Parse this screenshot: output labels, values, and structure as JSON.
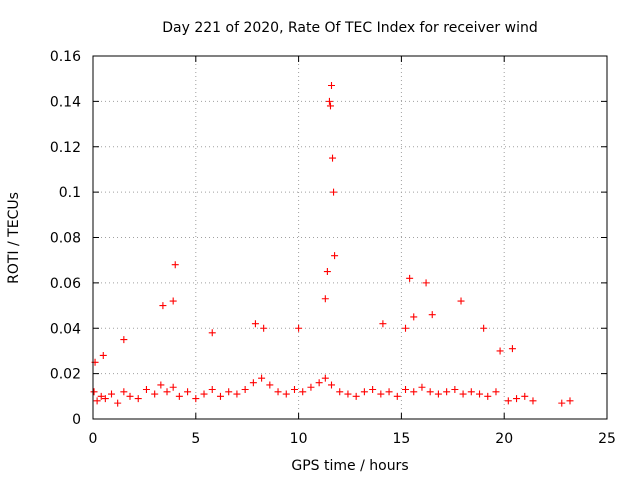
{
  "chart_data": {
    "type": "scatter",
    "title": "Day 221 of 2020, Rate Of TEC Index for receiver wind",
    "xlabel": "GPS time / hours",
    "ylabel": "ROTI / TECUs",
    "xlim": [
      0,
      25
    ],
    "ylim": [
      0,
      0.16
    ],
    "x_ticks": [
      "0",
      "5",
      "10",
      "15",
      "20",
      "25"
    ],
    "y_ticks": [
      "0",
      "0.02",
      "0.04",
      "0.06",
      "0.08",
      "0.1",
      "0.12",
      "0.14",
      "0.16"
    ],
    "grid": true,
    "marker": "+",
    "color": "#ff0000",
    "series": [
      {
        "x": [
          0.05,
          0.2,
          0.4,
          0.6,
          0.9,
          1.2,
          1.5,
          1.8,
          2.2,
          2.6,
          3.0,
          3.3,
          3.6,
          3.9,
          4.2,
          4.6,
          5.0,
          5.4,
          5.8,
          6.2,
          6.6,
          7.0,
          7.4,
          7.8,
          8.2,
          8.6,
          9.0,
          9.4,
          9.8,
          10.2,
          10.6,
          11.0,
          11.3,
          11.6,
          12.0,
          12.4,
          12.8,
          13.2,
          13.6,
          14.0,
          14.4,
          14.8,
          15.2,
          15.6,
          16.0,
          16.4,
          16.8,
          17.2,
          17.6,
          18.0,
          18.4,
          18.8,
          19.2,
          19.6,
          20.2,
          20.6,
          21.0,
          21.4,
          22.8,
          23.2,
          0.1,
          0.5,
          1.5,
          3.4,
          3.9,
          4.0,
          5.8,
          7.9,
          8.3,
          10.0,
          11.3,
          11.4,
          11.5,
          11.55,
          11.6,
          11.65,
          11.7,
          11.75,
          14.1,
          15.2,
          15.4,
          15.6,
          16.2,
          16.5,
          17.9,
          19.0,
          19.8,
          20.4
        ],
        "y": [
          0.012,
          0.008,
          0.01,
          0.009,
          0.011,
          0.007,
          0.012,
          0.01,
          0.009,
          0.013,
          0.011,
          0.015,
          0.012,
          0.014,
          0.01,
          0.012,
          0.009,
          0.011,
          0.013,
          0.01,
          0.012,
          0.011,
          0.013,
          0.016,
          0.018,
          0.015,
          0.012,
          0.011,
          0.013,
          0.012,
          0.014,
          0.016,
          0.018,
          0.015,
          0.012,
          0.011,
          0.01,
          0.012,
          0.013,
          0.011,
          0.012,
          0.01,
          0.013,
          0.012,
          0.014,
          0.012,
          0.011,
          0.012,
          0.013,
          0.011,
          0.012,
          0.011,
          0.01,
          0.012,
          0.008,
          0.009,
          0.01,
          0.008,
          0.007,
          0.008,
          0.025,
          0.028,
          0.035,
          0.05,
          0.052,
          0.068,
          0.038,
          0.042,
          0.04,
          0.04,
          0.053,
          0.065,
          0.14,
          0.138,
          0.147,
          0.115,
          0.1,
          0.072,
          0.042,
          0.04,
          0.062,
          0.045,
          0.06,
          0.046,
          0.052,
          0.04,
          0.03,
          0.031
        ]
      }
    ]
  }
}
